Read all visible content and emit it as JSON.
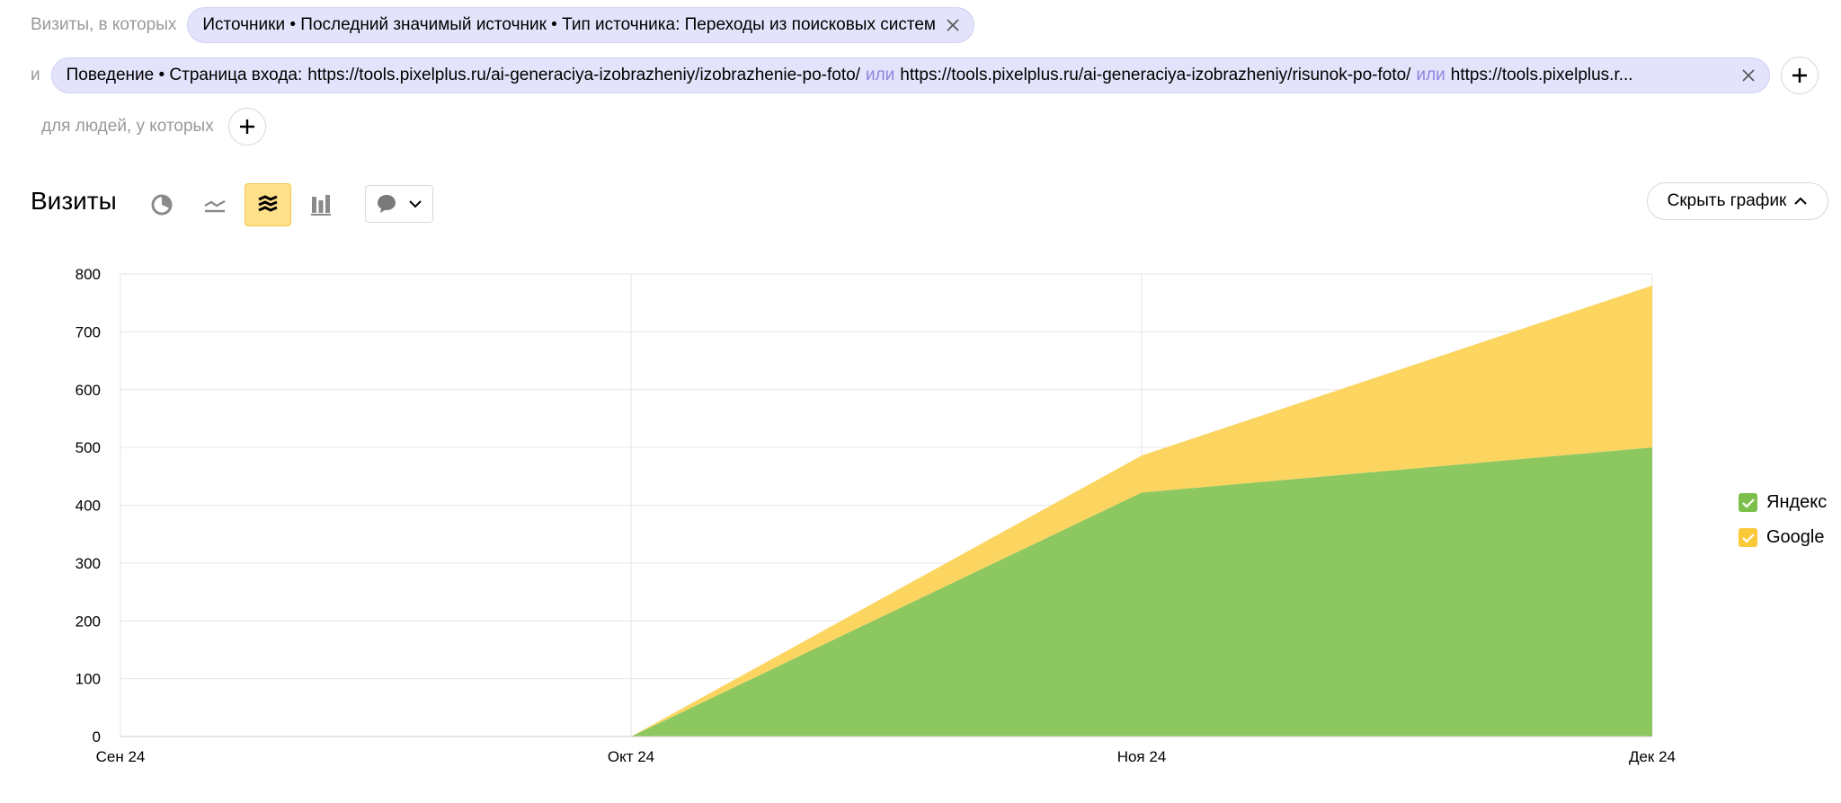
{
  "filters": {
    "visits_label": "Визиты, в которых",
    "source_chip": "Источники • Последний значимый источник • Тип источника: Переходы из поисковых систем",
    "and_label": "и",
    "behavior_prefix": "Поведение • Страница входа:",
    "behavior_urls": [
      "https://tools.pixelplus.ru/ai-generaciya-izobrazheniy/izobrazhenie-po-foto/",
      "https://tools.pixelplus.ru/ai-generaciya-izobrazheniy/risunok-po-foto/",
      "https://tools.pixelplus.r..."
    ],
    "or_label": "или",
    "people_label": "для людей, у которых"
  },
  "section": {
    "title": "Визиты",
    "hide_chart_label": "Скрыть график",
    "active_chart_mode": "stacked-area"
  },
  "legend": [
    {
      "label": "Яндекс",
      "color": "#7cbf4a",
      "checked": true
    },
    {
      "label": "Google",
      "color": "#fac938",
      "checked": true
    }
  ],
  "chart_data": {
    "type": "area",
    "stacked": true,
    "x": [
      "Сен 24",
      "Окт 24",
      "Ноя 24",
      "Дек 24"
    ],
    "ylim": [
      0,
      800
    ],
    "yticks": [
      0,
      100,
      200,
      300,
      400,
      500,
      600,
      700,
      800
    ],
    "grid": true,
    "legend_position": "right",
    "series": [
      {
        "name": "Яндекс",
        "color": "#8cc75f",
        "values": [
          0,
          0,
          422,
          500
        ]
      },
      {
        "name": "Google",
        "color": "#fcd561",
        "values": [
          0,
          0,
          64,
          280
        ]
      }
    ]
  }
}
